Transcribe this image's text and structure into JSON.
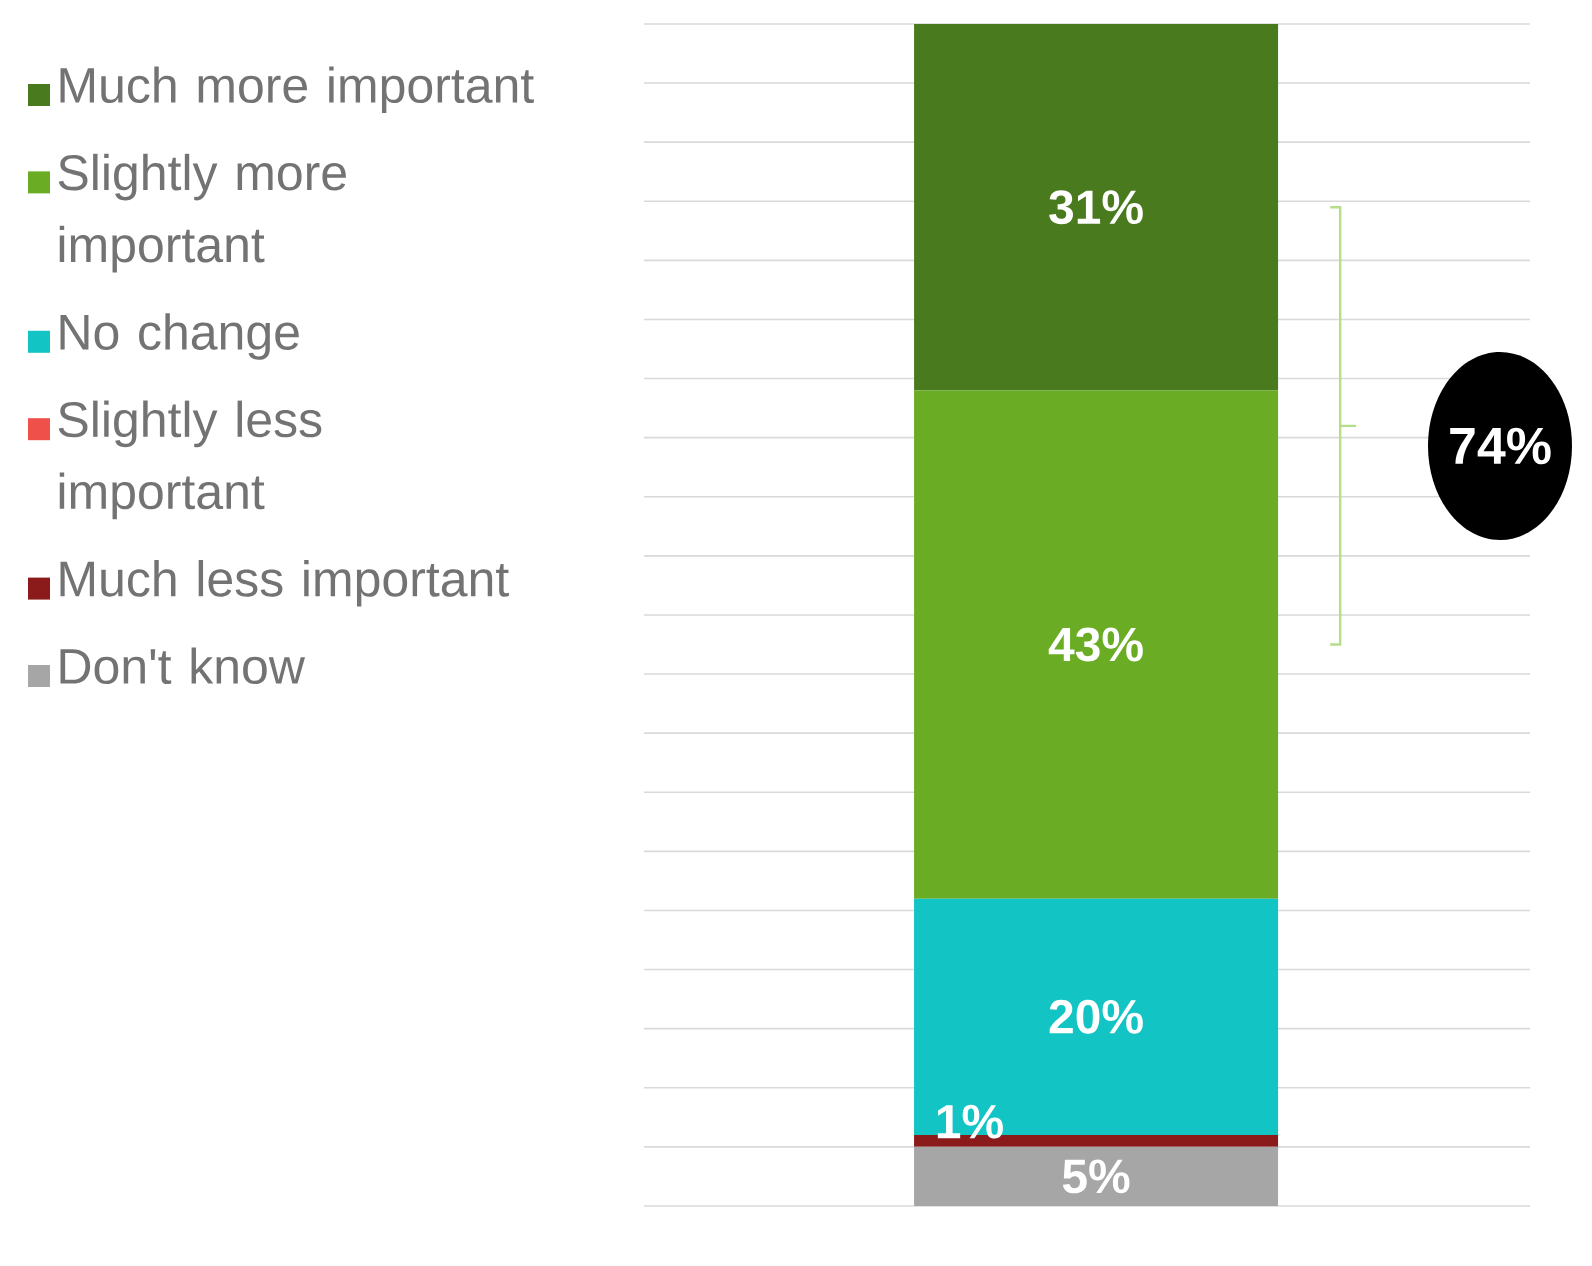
{
  "chart_data": {
    "type": "bar",
    "stacked": true,
    "categories": [
      null
    ],
    "series": [
      {
        "name": "Don't know",
        "color": "#a6a6a6",
        "values": [
          5
        ],
        "value_labels": [
          "5%"
        ]
      },
      {
        "name": "Much less important",
        "color": "#8b1a1a",
        "values": [
          1
        ],
        "value_labels": [
          "1%"
        ]
      },
      {
        "name": "Slightly less important",
        "color": "#f0504a",
        "values": [
          null
        ],
        "value_labels": [
          null
        ]
      },
      {
        "name": "No change",
        "color": "#12c4c4",
        "values": [
          20
        ],
        "value_labels": [
          "20%"
        ]
      },
      {
        "name": "Slightly more important",
        "color": "#6aad24",
        "values": [
          43
        ],
        "value_labels": [
          "43%"
        ]
      },
      {
        "name": "Much more important",
        "color": "#4a7a1e",
        "values": [
          31
        ],
        "value_labels": [
          "31%"
        ]
      }
    ],
    "grid": "y",
    "legend": "left",
    "tick_labels": false,
    "annotations": [
      "74%"
    ]
  }
}
